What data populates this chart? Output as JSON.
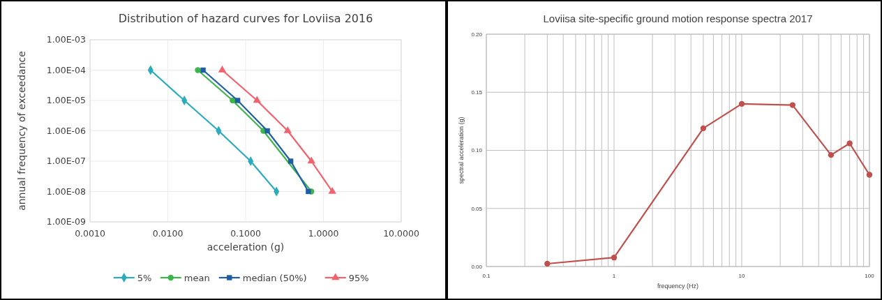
{
  "chart_data": [
    {
      "type": "line",
      "title": "Distribution of hazard curves for Loviisa 2016",
      "xlabel": "acceleration (g)",
      "ylabel": "annual frequency of exceedance",
      "log": "xy",
      "grid": true,
      "legend": "bottom",
      "xlim": [
        0.001,
        10
      ],
      "xticks": [
        {
          "value": 0.001,
          "label": "0.0010"
        },
        {
          "value": 0.01,
          "label": "0.0100"
        },
        {
          "value": 0.1,
          "label": "0.1000"
        },
        {
          "value": 1,
          "label": "1.0000"
        },
        {
          "value": 10,
          "label": "10.0000"
        }
      ],
      "ylim": [
        1e-09,
        0.001
      ],
      "yticks": [
        {
          "value": 1e-09,
          "label": "1.00E-09"
        },
        {
          "value": 1e-08,
          "label": "1.00E-08"
        },
        {
          "value": 1e-07,
          "label": "1.00E-07"
        },
        {
          "value": 1e-06,
          "label": "1.00E-06"
        },
        {
          "value": 1e-05,
          "label": "1.00E-05"
        },
        {
          "value": 0.0001,
          "label": "1.00E-04"
        },
        {
          "value": 0.001,
          "label": "1.00E-03"
        }
      ],
      "series": [
        {
          "name": "5%",
          "color": "#2aacbd",
          "marker": "diamond",
          "x": [
            0.006,
            0.0163,
            0.045,
            0.116,
            0.249
          ],
          "values": [
            0.0001,
            1e-05,
            1e-06,
            1e-07,
            1e-08
          ]
        },
        {
          "name": "mean",
          "color": "#3cb54a",
          "marker": "circle",
          "x": [
            0.0243,
            0.068,
            0.169,
            0.377,
            0.7
          ],
          "values": [
            0.0001,
            1e-05,
            1e-06,
            null,
            1e-08
          ]
        },
        {
          "name": "median (50%)",
          "color": "#1f5ea6",
          "marker": "square",
          "x": [
            0.0284,
            0.079,
            0.19,
            0.38,
            0.64
          ],
          "values": [
            0.0001,
            1e-05,
            1e-06,
            1e-07,
            1e-08
          ]
        },
        {
          "name": "95%",
          "color": "#f2616c",
          "marker": "triangle",
          "x": [
            0.05,
            0.14,
            0.347,
            0.7,
            1.3
          ],
          "values": [
            0.0001,
            1e-05,
            1e-06,
            1e-07,
            1e-08
          ]
        }
      ]
    },
    {
      "type": "line",
      "title": "Loviisa site-specific ground motion response spectra 2017",
      "xlabel": "frequency (Hz)",
      "ylabel": "spectral acceleration (g)",
      "log": "x",
      "grid": true,
      "marker": "circle",
      "xlim": [
        0.1,
        100
      ],
      "xticks": [
        0.1,
        {
          "value": 0.2,
          "label": null
        },
        {
          "value": 0.3,
          "label": null
        },
        {
          "value": 0.4,
          "label": null
        },
        {
          "value": 0.5,
          "label": null
        },
        {
          "value": 0.6,
          "label": null
        },
        {
          "value": 0.7,
          "label": null
        },
        {
          "value": 0.8,
          "label": null
        },
        {
          "value": 0.9,
          "label": null
        },
        1,
        {
          "value": 2,
          "label": null
        },
        {
          "value": 3,
          "label": null
        },
        {
          "value": 4,
          "label": null
        },
        {
          "value": 5,
          "label": null
        },
        {
          "value": 6,
          "label": null
        },
        {
          "value": 7,
          "label": null
        },
        {
          "value": 8,
          "label": null
        },
        {
          "value": 9,
          "label": null
        },
        10,
        {
          "value": 20,
          "label": null
        },
        {
          "value": 30,
          "label": null
        },
        {
          "value": 40,
          "label": null
        },
        {
          "value": 50,
          "label": null
        },
        {
          "value": 60,
          "label": null
        },
        {
          "value": 70,
          "label": null
        },
        {
          "value": 80,
          "label": null
        },
        {
          "value": 90,
          "label": null
        },
        100
      ],
      "ylim": [
        0,
        0.2
      ],
      "yticks": [
        {
          "value": 0,
          "label": "0.00"
        },
        {
          "value": 0.05,
          "label": "0.05"
        },
        {
          "value": 0.1,
          "label": "0.10"
        },
        {
          "value": 0.15,
          "label": "0.15"
        },
        {
          "value": 0.2,
          "label": "0.20"
        }
      ],
      "x": [
        0.3,
        1,
        5,
        10,
        25,
        50,
        70,
        100
      ],
      "series": [
        {
          "color": "#c0504d",
          "values": [
            0.0024,
            0.0077,
            0.119,
            0.14,
            0.139,
            0.096,
            0.106,
            0.079
          ]
        }
      ]
    }
  ]
}
